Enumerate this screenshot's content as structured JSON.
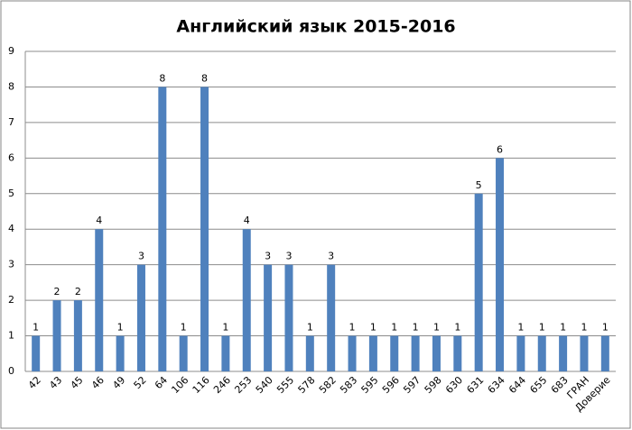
{
  "chart_data": {
    "type": "bar",
    "title": "Английский язык 2015-2016",
    "categories": [
      "42",
      "43",
      "45",
      "46",
      "49",
      "52",
      "64",
      "106",
      "116",
      "246",
      "253",
      "540",
      "555",
      "578",
      "582",
      "583",
      "595",
      "596",
      "597",
      "598",
      "630",
      "631",
      "634",
      "644",
      "655",
      "683",
      "ГРАН",
      "Доверие"
    ],
    "values": [
      1,
      2,
      2,
      4,
      1,
      3,
      8,
      1,
      8,
      1,
      4,
      3,
      3,
      1,
      3,
      1,
      1,
      1,
      1,
      1,
      1,
      5,
      6,
      1,
      1,
      1,
      1,
      1
    ],
    "color": "#4f81bd",
    "ylim": [
      0,
      9
    ],
    "yticks": [
      0,
      1,
      2,
      3,
      4,
      5,
      6,
      7,
      8,
      9
    ],
    "grid": true
  }
}
